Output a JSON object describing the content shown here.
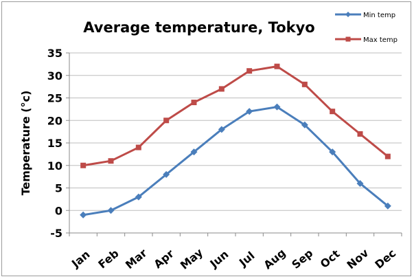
{
  "chart_data": {
    "type": "line",
    "title": "Average temperature, Tokyo",
    "xlabel": "",
    "ylabel": "Temperature (°c)",
    "categories": [
      "Jan",
      "Feb",
      "Mar",
      "Apr",
      "May",
      "Jun",
      "Jul",
      "Aug",
      "Sep",
      "Oct",
      "Nov",
      "Dec"
    ],
    "ylim": [
      -5,
      35
    ],
    "yticks": [
      -5,
      0,
      5,
      10,
      15,
      20,
      25,
      30,
      35
    ],
    "grid": true,
    "legend_position": "top-right",
    "series": [
      {
        "name": "Min temp",
        "color": "#4a7ebb",
        "marker": "diamond",
        "values": [
          -1,
          0,
          3,
          8,
          13,
          18,
          22,
          23,
          19,
          13,
          6,
          1
        ]
      },
      {
        "name": "Max temp",
        "color": "#be4b48",
        "marker": "square",
        "values": [
          10,
          11,
          14,
          20,
          24,
          27,
          31,
          32,
          28,
          22,
          17,
          12
        ]
      }
    ]
  }
}
